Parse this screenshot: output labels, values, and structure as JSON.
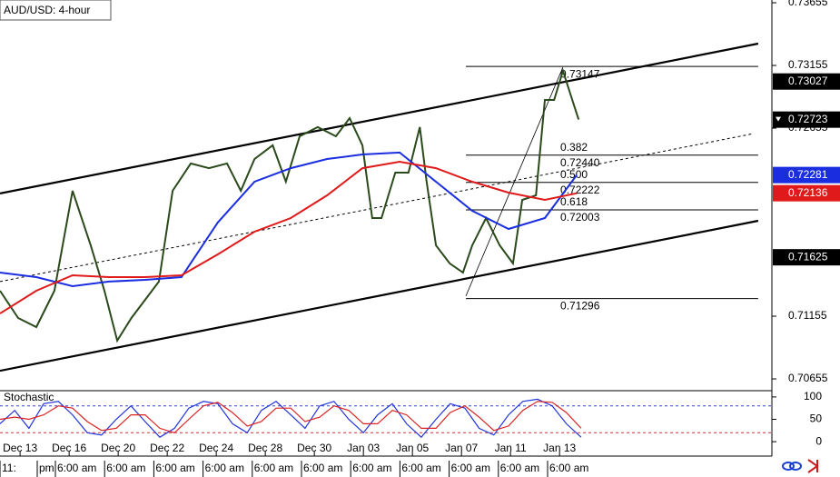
{
  "chart_data": [
    {
      "type": "line",
      "title": "AUD/USD: 4-hour",
      "xlim": [
        -0.41,
        15.33
      ],
      "xticks": [
        {
          "value": 0,
          "label": "Dec 13"
        },
        {
          "value": 1,
          "label": "Dec 16"
        },
        {
          "value": 2,
          "label": "Dec 20"
        },
        {
          "value": 3,
          "label": "Dec 22"
        },
        {
          "value": 4,
          "label": "Dec 24"
        },
        {
          "value": 5,
          "label": "Dec 28"
        },
        {
          "value": 6,
          "label": "Dec 30"
        },
        {
          "value": 7,
          "label": "Jan 03"
        },
        {
          "value": 8,
          "label": "Jan 05"
        },
        {
          "value": 9,
          "label": "Jan 07"
        },
        {
          "value": 10,
          "label": "Jan 11"
        },
        {
          "value": 11,
          "label": "Jan 13"
        }
      ],
      "ylim": [
        0.70561,
        0.73677
      ],
      "yticks": [
        0.73655,
        0.73155,
        0.72655,
        0.71155,
        0.70655
      ],
      "price_markers": [
        {
          "value": 0.73027,
          "color": "#000000"
        },
        {
          "value": 0.72723,
          "color": "#000000"
        },
        {
          "value": 0.72281,
          "color": "#1a2ee0"
        },
        {
          "value": 0.72136,
          "color": "#e01a1a"
        },
        {
          "value": 0.71625,
          "color": "#000000"
        }
      ],
      "series": [
        {
          "color": "#2b4a1c",
          "x": [
            -0.41,
            -0.04,
            0.33,
            0.7,
            1.07,
            1.44,
            1.72,
            1.98,
            2.27,
            2.55,
            2.83,
            3.11,
            3.48,
            3.85,
            4.22,
            4.5,
            4.78,
            5.15,
            5.42,
            5.7,
            6.07,
            6.44,
            6.72,
            6.98,
            7.18,
            7.37,
            7.65,
            7.92,
            8.15,
            8.29,
            8.48,
            8.76,
            9.03,
            9.22,
            9.5,
            9.78,
            10.05,
            10.24,
            10.52,
            10.7,
            10.89,
            11.07,
            11.26,
            11.39
          ],
          "values": [
            0.71358,
            0.71141,
            0.71068,
            0.71358,
            0.72155,
            0.7172,
            0.71358,
            0.7096,
            0.71141,
            0.71286,
            0.71431,
            0.72155,
            0.72373,
            0.72336,
            0.72373,
            0.72155,
            0.72409,
            0.72518,
            0.72228,
            0.7259,
            0.72663,
            0.7259,
            0.72735,
            0.72518,
            0.71938,
            0.71938,
            0.723,
            0.723,
            0.72663,
            0.72228,
            0.7172,
            0.71576,
            0.71503,
            0.7172,
            0.71938,
            0.7172,
            0.71576,
            0.72083,
            0.72119,
            0.7288,
            0.7288,
            0.73112,
            0.7288,
            0.72723
          ]
        },
        {
          "color": "#1a2ee0",
          "x": [
            -0.41,
            0.33,
            1.07,
            1.81,
            2.55,
            3.29,
            4.03,
            4.78,
            5.52,
            6.26,
            6.98,
            7.74,
            8.48,
            9.22,
            9.96,
            10.7,
            11.35
          ],
          "values": [
            0.71503,
            0.71467,
            0.71394,
            0.71431,
            0.71445,
            0.71467,
            0.71902,
            0.72228,
            0.72336,
            0.72409,
            0.72445,
            0.7246,
            0.72228,
            0.71996,
            0.71851,
            0.71938,
            0.72281
          ]
        },
        {
          "color": "#e01a1a",
          "x": [
            -0.41,
            0.33,
            1.07,
            1.81,
            2.55,
            3.29,
            4.03,
            4.78,
            5.52,
            6.26,
            6.98,
            7.74,
            8.48,
            9.22,
            9.96,
            10.7,
            11.35
          ],
          "values": [
            0.71177,
            0.71358,
            0.71481,
            0.71467,
            0.71467,
            0.71481,
            0.71648,
            0.71829,
            0.71938,
            0.72119,
            0.72336,
            0.72387,
            0.72336,
            0.72228,
            0.72141,
            0.72083,
            0.72136
          ]
        }
      ],
      "trendlines": [
        {
          "x": [
            -0.41,
            15.05
          ],
          "values": [
            0.72134,
            0.73329
          ],
          "dash": false
        },
        {
          "x": [
            -0.41,
            15.05
          ],
          "values": [
            0.7072,
            0.71916
          ],
          "dash": false
        },
        {
          "x": [
            -0.41,
            14.96
          ],
          "values": [
            0.71431,
            0.72612
          ],
          "dash": true
        },
        {
          "x": [
            9.09,
            11.07
          ],
          "values": [
            0.71315,
            0.73141
          ],
          "dash": false
        }
      ],
      "fib": {
        "x": [
          9.09,
          15.05
        ],
        "levels": [
          "0.382",
          "0.500",
          "0.618"
        ],
        "prices": [
          0.73147,
          {
            "value": 0.7244,
            "label": "0.72440"
          },
          0.72222,
          0.72003,
          0.71296
        ]
      }
    },
    {
      "type": "line",
      "title": "Stochastic",
      "ylim": [
        -18,
        114
      ],
      "yticks": [
        100,
        50,
        0
      ],
      "levels": [
        {
          "value": 80,
          "color": "#3344cc"
        },
        {
          "value": 20,
          "color": "#cc3333"
        }
      ],
      "x": [
        -0.41,
        -0.11,
        0.18,
        0.48,
        0.78,
        1.07,
        1.37,
        1.66,
        1.96,
        2.26,
        2.55,
        2.85,
        3.15,
        3.44,
        3.74,
        4.03,
        4.33,
        4.63,
        4.92,
        5.22,
        5.52,
        5.81,
        6.11,
        6.4,
        6.7,
        7,
        7.29,
        7.59,
        7.88,
        8.18,
        8.48,
        8.77,
        9.07,
        9.36,
        9.66,
        9.96,
        10.25,
        10.55,
        10.85,
        11.14,
        11.44
      ],
      "series": [
        {
          "color": "#2233dd",
          "values": [
            40,
            70,
            30,
            85,
            90,
            60,
            20,
            15,
            50,
            80,
            45,
            10,
            30,
            75,
            90,
            85,
            40,
            20,
            70,
            90,
            60,
            30,
            80,
            90,
            50,
            20,
            60,
            85,
            40,
            10,
            50,
            85,
            75,
            30,
            15,
            60,
            90,
            95,
            80,
            40,
            10
          ]
        },
        {
          "color": "#dd2222",
          "values": [
            50,
            55,
            50,
            60,
            80,
            75,
            45,
            25,
            30,
            60,
            60,
            30,
            20,
            50,
            80,
            88,
            65,
            35,
            45,
            75,
            75,
            45,
            55,
            80,
            70,
            40,
            40,
            70,
            60,
            30,
            30,
            65,
            80,
            55,
            25,
            35,
            70,
            90,
            88,
            65,
            30
          ]
        }
      ]
    }
  ],
  "time_axis": {
    "labels": [
      "11:",
      "pm",
      "6:00 am",
      "6:00 am",
      "6:00 am",
      "6:00 am",
      "6:00 am",
      "6:00 am",
      "6:00 am",
      "6:00 am",
      "6:00 am",
      "6:00 am",
      "6:00 am"
    ]
  }
}
